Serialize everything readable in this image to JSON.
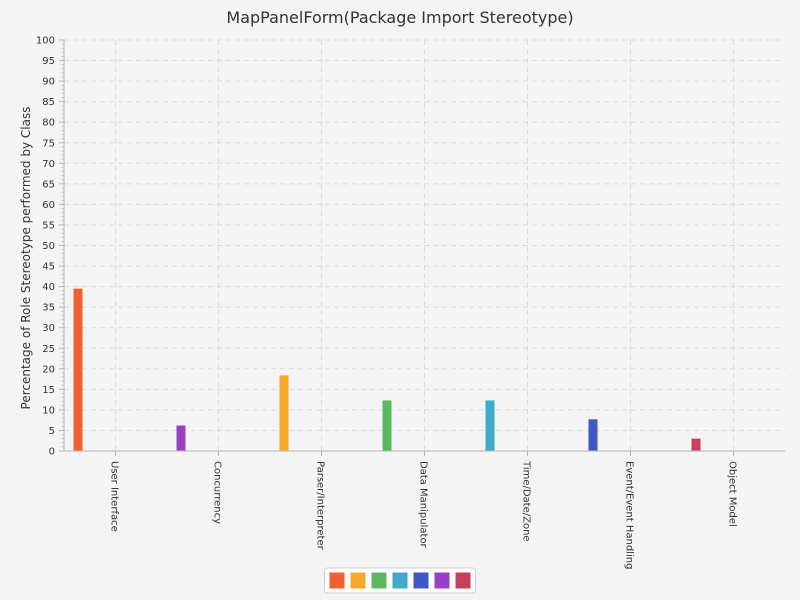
{
  "chart_data": {
    "type": "bar",
    "title": "MapPanelForm(Package Import Stereotype)",
    "ylabel": "Percentage of Role Stereotype performed by Class",
    "xlabel": "",
    "ylim": [
      0,
      100
    ],
    "ytick_step": 5,
    "grid": true,
    "legend_position": "bottom-center",
    "categories": [
      "User Interface",
      "Concurrency",
      "Parser/Interpreter",
      "Data Manipulator",
      "Time/Date/Zone",
      "Event/Event Handling",
      "Object Model"
    ],
    "series": [
      {
        "color": "#f06030",
        "values": [
          39.5,
          null,
          null,
          null,
          null,
          null,
          null
        ]
      },
      {
        "color": "#f8a828",
        "values": [
          null,
          null,
          18.4,
          null,
          null,
          null,
          null
        ]
      },
      {
        "color": "#5cb85c",
        "values": [
          null,
          null,
          null,
          12.3,
          null,
          null,
          null
        ]
      },
      {
        "color": "#41aac8",
        "values": [
          null,
          null,
          null,
          null,
          12.3,
          null,
          null
        ]
      },
      {
        "color": "#3f58c4",
        "values": [
          null,
          null,
          null,
          null,
          null,
          7.7,
          null
        ]
      },
      {
        "color": "#9a3fc8",
        "values": [
          null,
          6.2,
          null,
          null,
          null,
          null,
          null
        ]
      },
      {
        "color": "#c8405c",
        "values": [
          null,
          null,
          null,
          null,
          null,
          null,
          3.0
        ]
      }
    ]
  }
}
